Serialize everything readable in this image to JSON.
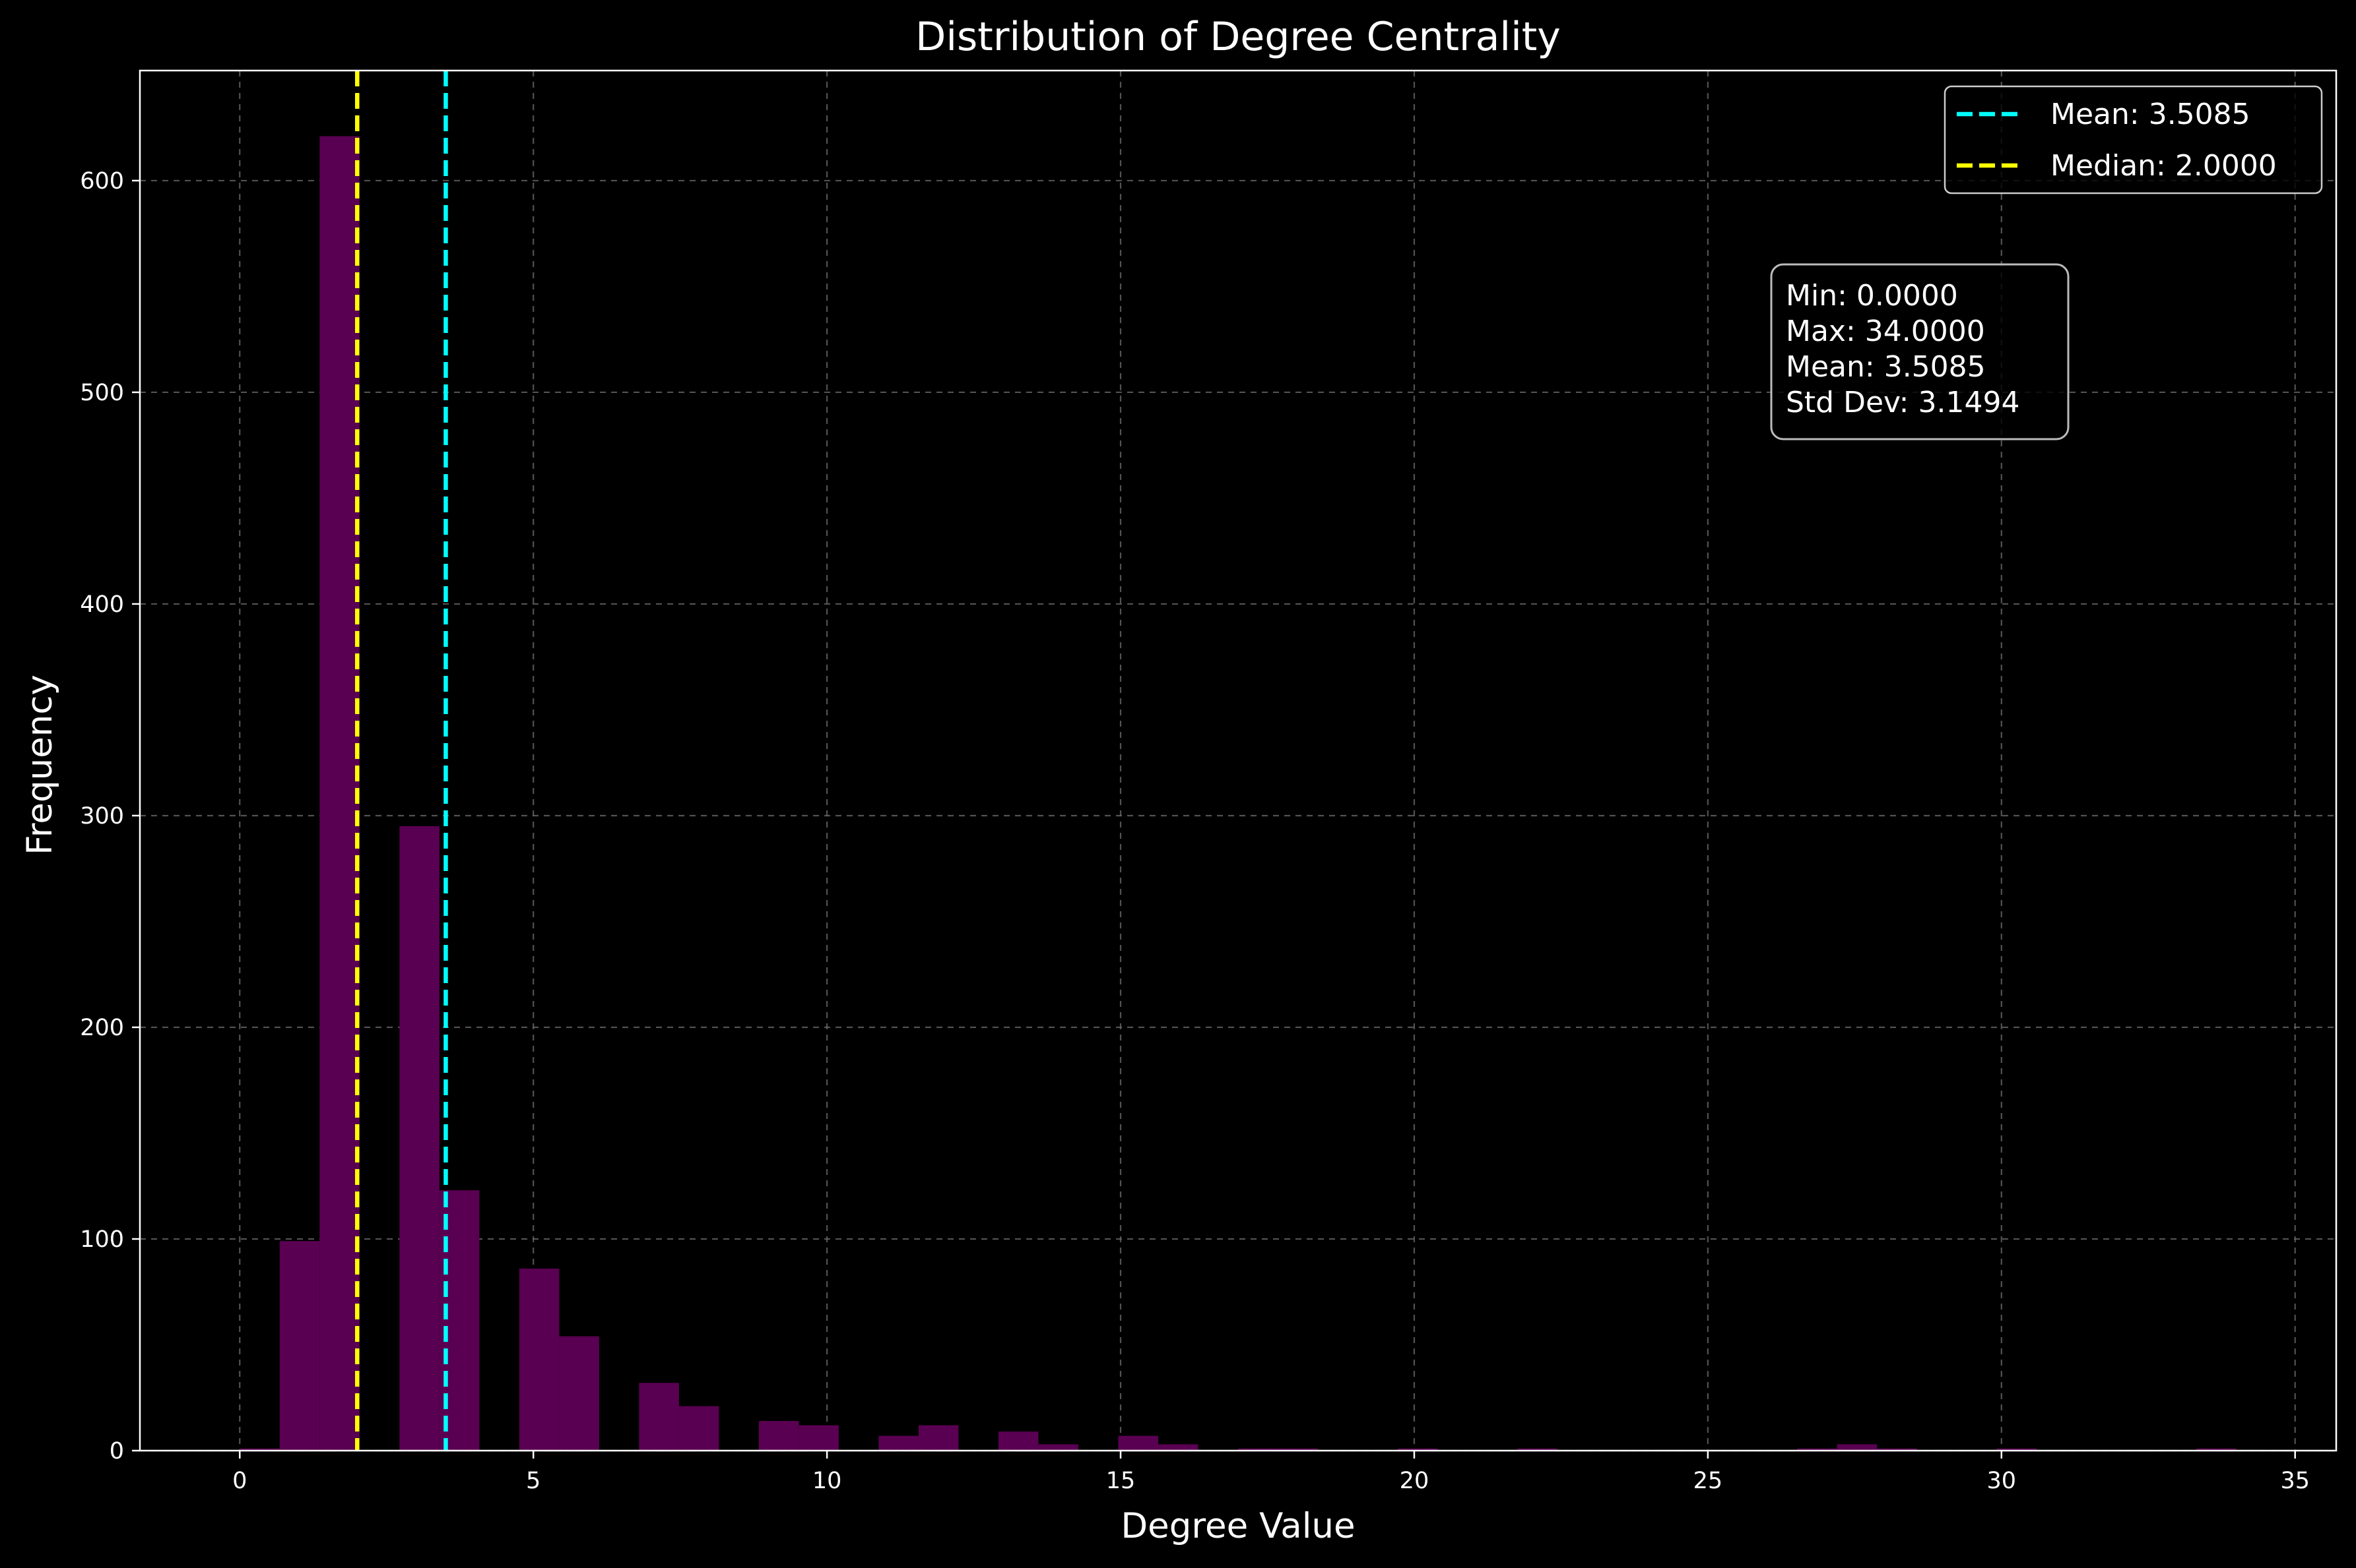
{
  "chart_data": {
    "type": "bar",
    "title": "Distribution of Degree Centrality",
    "xlabel": "Degree Value",
    "ylabel": "Frequency",
    "xlim": [
      -1.7,
      35.7
    ],
    "ylim": [
      0,
      652
    ],
    "xticks": [
      0,
      5,
      10,
      15,
      20,
      25,
      30,
      35
    ],
    "yticks": [
      0,
      100,
      200,
      300,
      400,
      500,
      600
    ],
    "grid": true,
    "bar_color": "#5a0052",
    "bin_width": 0.68,
    "bins": [
      {
        "x": 0.0,
        "count": 1
      },
      {
        "x": 0.68,
        "count": 99
      },
      {
        "x": 1.36,
        "count": 621
      },
      {
        "x": 2.72,
        "count": 295
      },
      {
        "x": 3.4,
        "count": 123
      },
      {
        "x": 4.76,
        "count": 86
      },
      {
        "x": 5.44,
        "count": 54
      },
      {
        "x": 6.8,
        "count": 32
      },
      {
        "x": 7.48,
        "count": 21
      },
      {
        "x": 8.84,
        "count": 14
      },
      {
        "x": 9.52,
        "count": 12
      },
      {
        "x": 10.88,
        "count": 7
      },
      {
        "x": 11.56,
        "count": 12
      },
      {
        "x": 12.92,
        "count": 9
      },
      {
        "x": 13.6,
        "count": 3
      },
      {
        "x": 14.96,
        "count": 7
      },
      {
        "x": 15.64,
        "count": 3
      },
      {
        "x": 17.0,
        "count": 1
      },
      {
        "x": 17.68,
        "count": 1
      },
      {
        "x": 19.72,
        "count": 1
      },
      {
        "x": 21.76,
        "count": 1
      },
      {
        "x": 26.52,
        "count": 1
      },
      {
        "x": 27.2,
        "count": 3
      },
      {
        "x": 27.88,
        "count": 1
      },
      {
        "x": 29.92,
        "count": 1
      },
      {
        "x": 33.32,
        "count": 1
      }
    ],
    "reference_lines": [
      {
        "label": "Mean: 3.5085",
        "x": 3.5085,
        "color": "#00ffff"
      },
      {
        "label": "Median: 2.0000",
        "x": 2.0,
        "color": "#ffff00"
      }
    ],
    "legend_position": "top-right",
    "stats_box": {
      "lines": [
        "Min: 0.0000",
        "Max: 34.0000",
        "Mean: 3.5085",
        "Std Dev: 3.1494"
      ],
      "position": "upper-right"
    }
  }
}
